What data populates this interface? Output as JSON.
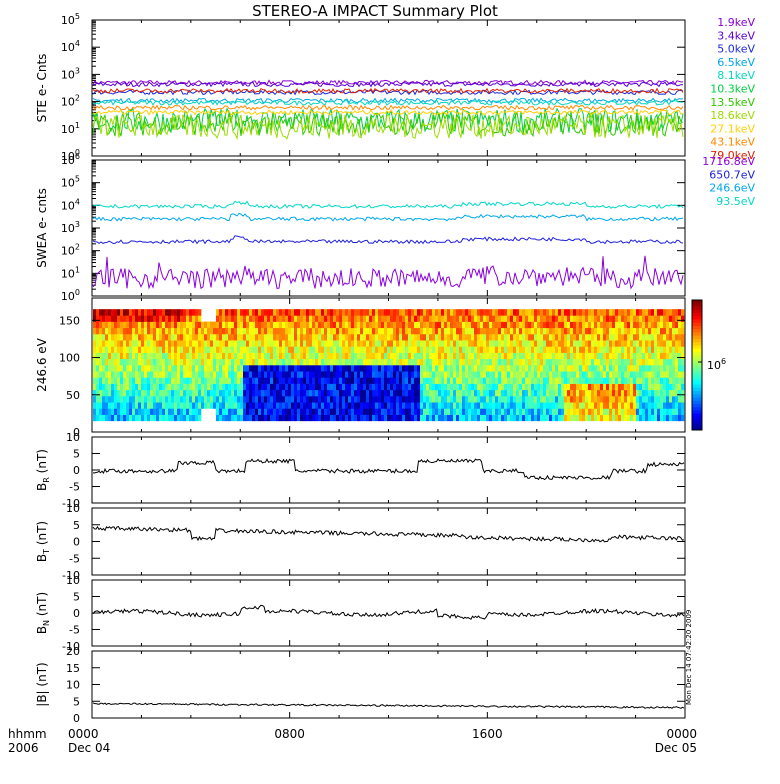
{
  "chart_data": {
    "type": "line",
    "title": "STEREO-A IMPACT Summary Plot",
    "time": {
      "row1_label": "hhmm",
      "row2_label": "2006",
      "ticks": [
        {
          "hhmm": "0000",
          "date": "Dec 04"
        },
        {
          "hhmm": "0800",
          "date": ""
        },
        {
          "hhmm": "1600",
          "date": ""
        },
        {
          "hhmm": "0000",
          "date": "Dec 05"
        }
      ],
      "xlim_hours": [
        0,
        24
      ]
    },
    "panels": [
      {
        "id": "ste",
        "ylabel": "STE e- Cnts",
        "scale": "log",
        "ylim_log10": [
          0,
          5
        ],
        "tick_exponents": [
          "0",
          "1",
          "2",
          "3",
          "4",
          "5"
        ],
        "series": [
          {
            "name": "1.9keV",
            "color": "#8a00d4",
            "level": 500
          },
          {
            "name": "3.4keV",
            "color": "#5a00d0",
            "level": 430
          },
          {
            "name": "5.0keV",
            "color": "#1c2ad8",
            "level": 220
          },
          {
            "name": "6.5keV",
            "color": "#00a6e0",
            "level": 110
          },
          {
            "name": "8.1keV",
            "color": "#00d8c0",
            "level": 90
          },
          {
            "name": "10.3keV",
            "color": "#00d040",
            "level": 20
          },
          {
            "name": "13.5keV",
            "color": "#30c800",
            "level": 15
          },
          {
            "name": "18.6keV",
            "color": "#9cdc00",
            "level": 12
          },
          {
            "name": "27.1keV",
            "color": "#ffd000",
            "level": 40
          },
          {
            "name": "43.1keV",
            "color": "#ff8a00",
            "level": 60
          },
          {
            "name": "79.0keV",
            "color": "#e02000",
            "level": 250
          }
        ]
      },
      {
        "id": "swea",
        "ylabel": "SWEA e- cnts",
        "scale": "log",
        "ylim_log10": [
          0,
          6
        ],
        "tick_exponents": [
          "0",
          "1",
          "2",
          "3",
          "4",
          "5",
          "6"
        ],
        "series": [
          {
            "name": "1716.8eV",
            "color": "#8a00e0",
            "level": 6
          },
          {
            "name": "650.7eV",
            "color": "#2020d8",
            "level": 250
          },
          {
            "name": "246.6eV",
            "color": "#00a8e8",
            "level": 2500
          },
          {
            "name": "93.5eV",
            "color": "#00d8c8",
            "level": 9000
          }
        ]
      },
      {
        "id": "pad",
        "ylabel": "246.6 eV",
        "type": "heatmap",
        "ylim": [
          0,
          180
        ],
        "yticks": [
          "0",
          "50",
          "100",
          "150"
        ],
        "colorbar_label": "6",
        "colorbar_base": "10"
      },
      {
        "id": "br",
        "ylabel": "B",
        "sub": "R",
        "unit": "(nT)",
        "ylim": [
          -10,
          10
        ],
        "yticks": [
          "10",
          "5",
          "0",
          "-5",
          "-10"
        ]
      },
      {
        "id": "bt",
        "ylabel": "B",
        "sub": "T",
        "unit": "(nT)",
        "ylim": [
          -10,
          10
        ],
        "yticks": [
          "10",
          "5",
          "0",
          "-5",
          "-10"
        ]
      },
      {
        "id": "bn",
        "ylabel": "B",
        "sub": "N",
        "unit": "(nT)",
        "ylim": [
          -10,
          10
        ],
        "yticks": [
          "10",
          "5",
          "0",
          "-5",
          "-10"
        ]
      },
      {
        "id": "bmag",
        "ylabel": "|B|",
        "unit": "(nT)",
        "ylim": [
          0,
          20
        ],
        "yticks": [
          "20",
          "15",
          "10",
          "5",
          "0"
        ]
      }
    ],
    "side_note": "Mon Dec 14 07:42:20 2009"
  }
}
